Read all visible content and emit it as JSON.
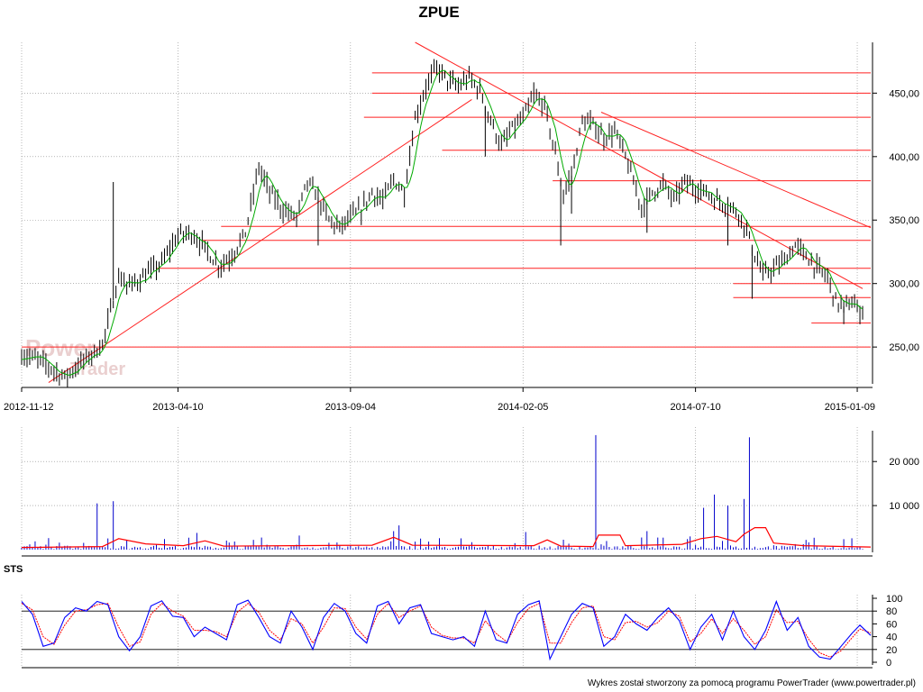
{
  "chart_data": {
    "type": "candlestick",
    "title": "ZPUE",
    "x_tick_labels": [
      "2012-11-12",
      "2013-04-10",
      "2013-09-04",
      "2014-02-05",
      "2014-07-10",
      "2015-01-09"
    ],
    "price_panel": {
      "y_tick_labels": [
        "250,00",
        "300,00",
        "350,00",
        "400,00",
        "450,00"
      ],
      "y_ticks": [
        250,
        300,
        350,
        400,
        450
      ],
      "ylim": [
        221,
        490
      ],
      "close_series_color": "#000000",
      "moving_average_color": "#00aa00",
      "approx_close_path": [
        [
          0,
          244
        ],
        [
          6,
          240
        ],
        [
          12,
          232
        ],
        [
          16,
          226
        ],
        [
          20,
          234
        ],
        [
          26,
          244
        ],
        [
          30,
          252
        ],
        [
          33,
          278
        ],
        [
          36,
          305
        ],
        [
          40,
          298
        ],
        [
          45,
          305
        ],
        [
          52,
          316
        ],
        [
          58,
          338
        ],
        [
          63,
          340
        ],
        [
          68,
          328
        ],
        [
          73,
          314
        ],
        [
          78,
          322
        ],
        [
          83,
          340
        ],
        [
          88,
          392
        ],
        [
          92,
          372
        ],
        [
          97,
          358
        ],
        [
          102,
          352
        ],
        [
          106,
          380
        ],
        [
          110,
          368
        ],
        [
          114,
          350
        ],
        [
          118,
          344
        ],
        [
          122,
          352
        ],
        [
          126,
          358
        ],
        [
          130,
          372
        ],
        [
          134,
          365
        ],
        [
          138,
          382
        ],
        [
          142,
          372
        ],
        [
          146,
          430
        ],
        [
          150,
          455
        ],
        [
          154,
          470
        ],
        [
          158,
          460
        ],
        [
          162,
          455
        ],
        [
          166,
          462
        ],
        [
          170,
          452
        ],
        [
          174,
          428
        ],
        [
          178,
          408
        ],
        [
          182,
          422
        ],
        [
          186,
          430
        ],
        [
          190,
          448
        ],
        [
          194,
          440
        ],
        [
          198,
          402
        ],
        [
          201,
          370
        ],
        [
          204,
          385
        ],
        [
          208,
          428
        ],
        [
          212,
          425
        ],
        [
          216,
          415
        ],
        [
          220,
          420
        ],
        [
          224,
          400
        ],
        [
          227,
          380
        ],
        [
          230,
          360
        ],
        [
          234,
          372
        ],
        [
          238,
          378
        ],
        [
          242,
          366
        ],
        [
          246,
          380
        ],
        [
          250,
          375
        ],
        [
          254,
          372
        ],
        [
          258,
          365
        ],
        [
          262,
          362
        ],
        [
          266,
          355
        ],
        [
          269,
          342
        ],
        [
          272,
          322
        ],
        [
          275,
          306
        ],
        [
          279,
          312
        ],
        [
          283,
          318
        ],
        [
          287,
          330
        ],
        [
          291,
          322
        ],
        [
          295,
          312
        ],
        [
          299,
          305
        ],
        [
          302,
          286
        ],
        [
          305,
          282
        ],
        [
          308,
          285
        ],
        [
          311,
          278
        ]
      ],
      "trendlines": [
        {
          "from": [
            10,
            222
          ],
          "to": [
            167,
            445
          ]
        },
        {
          "from": [
            146,
            490
          ],
          "to": [
            312,
            296
          ]
        },
        {
          "from": [
            215,
            435
          ],
          "to": [
            315,
            344
          ]
        }
      ],
      "horizontal_levels": [
        {
          "value": 466,
          "x_from": 130
        },
        {
          "value": 450,
          "x_from": 130
        },
        {
          "value": 431,
          "x_from": 127
        },
        {
          "value": 405,
          "x_from": 156
        },
        {
          "value": 381,
          "x_from": 197
        },
        {
          "value": 345,
          "x_from": 74
        },
        {
          "value": 334,
          "x_from": 67
        },
        {
          "value": 312,
          "x_from": 50
        },
        {
          "value": 300,
          "x_from": 264
        },
        {
          "value": 289,
          "x_from": 264
        },
        {
          "value": 269,
          "x_from": 293
        },
        {
          "value": 250,
          "x_from": 0
        }
      ],
      "level_color": "#ff2020"
    },
    "volume_panel": {
      "y_tick_labels": [
        "10 000",
        "20 000"
      ],
      "y_ticks": [
        10000,
        20000
      ],
      "ylim": [
        0,
        27000
      ],
      "bar_color": "#0000cc",
      "average_color": "#ff0000",
      "spikes": [
        {
          "x": 28,
          "value": 10500
        },
        {
          "x": 34,
          "value": 11000
        },
        {
          "x": 65,
          "value": 3800
        },
        {
          "x": 103,
          "value": 3200
        },
        {
          "x": 140,
          "value": 5500
        },
        {
          "x": 138,
          "value": 4200
        },
        {
          "x": 187,
          "value": 4000
        },
        {
          "x": 213,
          "value": 26000
        },
        {
          "x": 253,
          "value": 9500
        },
        {
          "x": 257,
          "value": 12500
        },
        {
          "x": 262,
          "value": 10000
        },
        {
          "x": 270,
          "value": 25500
        },
        {
          "x": 268,
          "value": 11500
        },
        {
          "x": 232,
          "value": 4200
        },
        {
          "x": 248,
          "value": 3000
        }
      ],
      "average_path": [
        [
          0,
          500
        ],
        [
          30,
          700
        ],
        [
          36,
          2500
        ],
        [
          46,
          1300
        ],
        [
          60,
          900
        ],
        [
          68,
          2000
        ],
        [
          75,
          800
        ],
        [
          100,
          900
        ],
        [
          130,
          1000
        ],
        [
          138,
          2800
        ],
        [
          145,
          1000
        ],
        [
          190,
          900
        ],
        [
          195,
          2200
        ],
        [
          200,
          800
        ],
        [
          212,
          700
        ],
        [
          214,
          3300
        ],
        [
          222,
          3300
        ],
        [
          224,
          900
        ],
        [
          245,
          1200
        ],
        [
          252,
          2500
        ],
        [
          258,
          3000
        ],
        [
          265,
          1800
        ],
        [
          268,
          3500
        ],
        [
          272,
          5000
        ],
        [
          276,
          5000
        ],
        [
          279,
          1500
        ],
        [
          290,
          900
        ],
        [
          315,
          600
        ]
      ]
    },
    "indicator_panel": {
      "label": "STS",
      "y_tick_labels": [
        "0",
        "20",
        "40",
        "60",
        "80",
        "100"
      ],
      "y_ticks": [
        0,
        20,
        40,
        60,
        80,
        100
      ],
      "ylim": [
        0,
        100
      ],
      "reference_lines": [
        20,
        80
      ],
      "k_color": "#0000ff",
      "d_color": "#ff0000",
      "k_path": [
        [
          0,
          95
        ],
        [
          4,
          75
        ],
        [
          8,
          25
        ],
        [
          12,
          30
        ],
        [
          16,
          70
        ],
        [
          20,
          85
        ],
        [
          24,
          80
        ],
        [
          28,
          95
        ],
        [
          32,
          90
        ],
        [
          36,
          40
        ],
        [
          40,
          18
        ],
        [
          44,
          40
        ],
        [
          48,
          88
        ],
        [
          52,
          96
        ],
        [
          56,
          72
        ],
        [
          60,
          70
        ],
        [
          64,
          40
        ],
        [
          68,
          55
        ],
        [
          72,
          45
        ],
        [
          76,
          35
        ],
        [
          80,
          90
        ],
        [
          84,
          97
        ],
        [
          88,
          70
        ],
        [
          92,
          40
        ],
        [
          96,
          30
        ],
        [
          100,
          80
        ],
        [
          104,
          55
        ],
        [
          108,
          20
        ],
        [
          112,
          70
        ],
        [
          116,
          92
        ],
        [
          120,
          80
        ],
        [
          124,
          45
        ],
        [
          128,
          30
        ],
        [
          132,
          88
        ],
        [
          136,
          95
        ],
        [
          140,
          60
        ],
        [
          144,
          85
        ],
        [
          148,
          90
        ],
        [
          152,
          45
        ],
        [
          156,
          40
        ],
        [
          160,
          35
        ],
        [
          164,
          40
        ],
        [
          168,
          25
        ],
        [
          172,
          80
        ],
        [
          176,
          35
        ],
        [
          180,
          30
        ],
        [
          184,
          75
        ],
        [
          188,
          90
        ],
        [
          192,
          96
        ],
        [
          196,
          5
        ],
        [
          200,
          40
        ],
        [
          204,
          75
        ],
        [
          208,
          92
        ],
        [
          212,
          85
        ],
        [
          216,
          25
        ],
        [
          220,
          40
        ],
        [
          224,
          75
        ],
        [
          228,
          60
        ],
        [
          232,
          50
        ],
        [
          236,
          70
        ],
        [
          240,
          85
        ],
        [
          244,
          65
        ],
        [
          248,
          20
        ],
        [
          252,
          55
        ],
        [
          256,
          75
        ],
        [
          260,
          35
        ],
        [
          264,
          80
        ],
        [
          268,
          40
        ],
        [
          272,
          20
        ],
        [
          276,
          50
        ],
        [
          280,
          95
        ],
        [
          284,
          50
        ],
        [
          288,
          70
        ],
        [
          292,
          25
        ],
        [
          296,
          8
        ],
        [
          300,
          5
        ],
        [
          304,
          25
        ],
        [
          308,
          45
        ],
        [
          311,
          58
        ],
        [
          315,
          42
        ]
      ],
      "d_path": [
        [
          0,
          92
        ],
        [
          4,
          82
        ],
        [
          8,
          40
        ],
        [
          12,
          28
        ],
        [
          16,
          58
        ],
        [
          20,
          80
        ],
        [
          24,
          82
        ],
        [
          28,
          90
        ],
        [
          32,
          92
        ],
        [
          36,
          55
        ],
        [
          40,
          25
        ],
        [
          44,
          32
        ],
        [
          48,
          75
        ],
        [
          52,
          92
        ],
        [
          56,
          80
        ],
        [
          60,
          72
        ],
        [
          64,
          50
        ],
        [
          68,
          50
        ],
        [
          72,
          48
        ],
        [
          76,
          40
        ],
        [
          80,
          78
        ],
        [
          84,
          92
        ],
        [
          88,
          78
        ],
        [
          92,
          50
        ],
        [
          96,
          35
        ],
        [
          100,
          68
        ],
        [
          104,
          60
        ],
        [
          108,
          30
        ],
        [
          112,
          55
        ],
        [
          116,
          85
        ],
        [
          120,
          84
        ],
        [
          124,
          55
        ],
        [
          128,
          36
        ],
        [
          132,
          75
        ],
        [
          136,
          92
        ],
        [
          140,
          70
        ],
        [
          144,
          80
        ],
        [
          148,
          88
        ],
        [
          152,
          55
        ],
        [
          156,
          42
        ],
        [
          160,
          38
        ],
        [
          164,
          38
        ],
        [
          168,
          30
        ],
        [
          172,
          65
        ],
        [
          176,
          45
        ],
        [
          180,
          32
        ],
        [
          184,
          62
        ],
        [
          188,
          84
        ],
        [
          192,
          92
        ],
        [
          196,
          30
        ],
        [
          200,
          30
        ],
        [
          204,
          62
        ],
        [
          208,
          85
        ],
        [
          212,
          88
        ],
        [
          216,
          40
        ],
        [
          220,
          35
        ],
        [
          224,
          62
        ],
        [
          228,
          64
        ],
        [
          232,
          55
        ],
        [
          236,
          62
        ],
        [
          240,
          80
        ],
        [
          244,
          72
        ],
        [
          248,
          32
        ],
        [
          252,
          45
        ],
        [
          256,
          68
        ],
        [
          260,
          45
        ],
        [
          264,
          68
        ],
        [
          268,
          50
        ],
        [
          272,
          28
        ],
        [
          276,
          40
        ],
        [
          280,
          82
        ],
        [
          284,
          62
        ],
        [
          288,
          64
        ],
        [
          292,
          36
        ],
        [
          296,
          15
        ],
        [
          300,
          8
        ],
        [
          304,
          18
        ],
        [
          308,
          38
        ],
        [
          311,
          52
        ],
        [
          315,
          46
        ]
      ]
    }
  },
  "watermark": {
    "line1": "Power",
    "line2": "Trader"
  },
  "footer": "Wykres został stworzony za pomocą programu PowerTrader (www.powertrader.pl)"
}
